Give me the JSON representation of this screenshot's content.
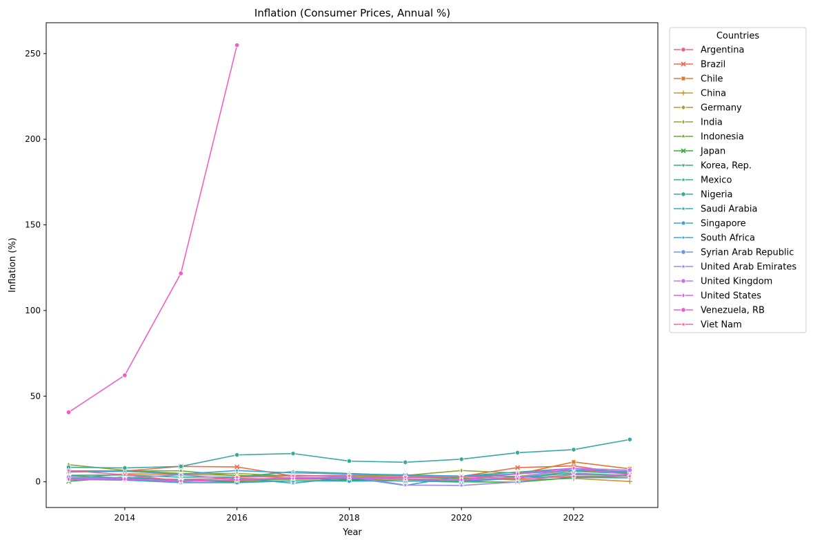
{
  "chart_data": {
    "type": "line",
    "title": "Inflation (Consumer Prices, Annual %)",
    "xlabel": "Year",
    "ylabel": "Inflation (%)",
    "xlim": [
      2012.6,
      2023.5
    ],
    "ylim": [
      -15,
      268
    ],
    "x_ticks": [
      2014,
      2016,
      2018,
      2020,
      2022
    ],
    "y_ticks": [
      0,
      50,
      100,
      150,
      200,
      250
    ],
    "grid": false,
    "legend": {
      "title": "Countries",
      "placement": "outside-right"
    },
    "x": [
      2013,
      2014,
      2015,
      2016,
      2017,
      2018,
      2019,
      2020,
      2021,
      2022,
      2023
    ],
    "series": [
      {
        "name": "Argentina",
        "color": "#f0637c",
        "marker": "circle",
        "values": [
          null,
          null,
          null,
          null,
          null,
          null,
          null,
          null,
          null,
          null,
          null
        ]
      },
      {
        "name": "Brazil",
        "color": "#ee6a49",
        "marker": "x",
        "values": [
          6.2,
          6.3,
          9.0,
          8.7,
          3.4,
          3.7,
          3.7,
          3.2,
          8.3,
          9.3,
          4.6
        ]
      },
      {
        "name": "Chile",
        "color": "#db7a2a",
        "marker": "square",
        "values": [
          1.8,
          4.7,
          4.3,
          3.8,
          2.2,
          2.4,
          2.6,
          3.0,
          4.5,
          11.6,
          7.6
        ]
      },
      {
        "name": "China",
        "color": "#c89435",
        "marker": "plus",
        "values": [
          2.6,
          2.0,
          1.4,
          2.0,
          1.6,
          2.1,
          2.9,
          2.4,
          1.0,
          2.0,
          0.2
        ]
      },
      {
        "name": "Germany",
        "color": "#ae9d31",
        "marker": "diamond",
        "values": [
          1.5,
          0.9,
          0.5,
          0.5,
          1.5,
          1.7,
          1.4,
          0.1,
          3.1,
          6.9,
          5.9
        ]
      },
      {
        "name": "India",
        "color": "#8fa531",
        "marker": "thin_diamond",
        "values": [
          10.0,
          6.7,
          4.9,
          4.9,
          3.3,
          3.9,
          3.7,
          6.6,
          5.1,
          6.7,
          5.4
        ]
      },
      {
        "name": "Indonesia",
        "color": "#5dae31",
        "marker": "triangle",
        "values": [
          6.4,
          6.4,
          6.4,
          3.5,
          3.8,
          3.2,
          2.8,
          1.9,
          1.6,
          4.2,
          3.7
        ]
      },
      {
        "name": "Japan",
        "color": "#33b03b",
        "marker": "x",
        "values": [
          0.3,
          2.8,
          0.8,
          -0.1,
          0.5,
          1.0,
          0.5,
          0.0,
          -0.2,
          2.5,
          3.3
        ]
      },
      {
        "name": "Korea, Rep.",
        "color": "#36ad6b",
        "marker": "triangle_down",
        "values": [
          1.3,
          1.3,
          0.7,
          1.0,
          1.9,
          1.5,
          0.4,
          0.5,
          2.5,
          5.1,
          3.6
        ]
      },
      {
        "name": "Mexico",
        "color": "#37ab8a",
        "marker": "star",
        "values": [
          3.8,
          4.0,
          2.7,
          2.8,
          6.0,
          4.9,
          3.6,
          3.4,
          5.7,
          7.9,
          5.5
        ]
      },
      {
        "name": "Nigeria",
        "color": "#38a89e",
        "marker": "hexagon",
        "values": [
          8.5,
          8.1,
          9.0,
          15.7,
          16.5,
          12.1,
          11.4,
          13.2,
          17.0,
          18.8,
          24.7
        ]
      },
      {
        "name": "Saudi Arabia",
        "color": "#39a7b0",
        "marker": "star",
        "values": [
          3.5,
          2.2,
          1.2,
          2.1,
          -0.8,
          2.5,
          -2.1,
          3.4,
          3.1,
          2.5,
          2.3
        ]
      },
      {
        "name": "Singapore",
        "color": "#3aa6c3",
        "marker": "pentagon",
        "values": [
          2.4,
          1.0,
          -0.5,
          -0.5,
          0.6,
          0.4,
          0.6,
          -0.2,
          2.3,
          6.1,
          4.8
        ]
      },
      {
        "name": "South Africa",
        "color": "#3ba3dc",
        "marker": "point",
        "values": [
          5.7,
          6.1,
          4.5,
          6.6,
          5.2,
          4.6,
          4.1,
          3.3,
          4.6,
          6.9,
          6.1
        ]
      },
      {
        "name": "Syrian Arab Republic",
        "color": "#6e93ec",
        "marker": "circle",
        "values": [
          null,
          null,
          null,
          null,
          null,
          null,
          null,
          null,
          null,
          null,
          null
        ]
      },
      {
        "name": "United Arab Emirates",
        "color": "#9f86e7",
        "marker": "star",
        "values": [
          1.1,
          2.3,
          4.1,
          1.6,
          2.0,
          3.1,
          -1.9,
          -2.1,
          -0.1,
          4.8,
          3.1
        ]
      },
      {
        "name": "United Kingdom",
        "color": "#c774ef",
        "marker": "circle",
        "values": [
          2.6,
          1.5,
          0.4,
          1.0,
          2.6,
          2.3,
          1.7,
          1.0,
          2.5,
          7.9,
          6.8
        ]
      },
      {
        "name": "United States",
        "color": "#e05de6",
        "marker": "thin_diamond",
        "values": [
          1.5,
          1.6,
          0.1,
          1.3,
          2.1,
          2.4,
          1.8,
          1.2,
          4.7,
          8.0,
          4.1
        ]
      },
      {
        "name": "Venezuela, RB",
        "color": "#f05fc4",
        "marker": "circle",
        "values": [
          40.6,
          62.2,
          121.7,
          254.9,
          null,
          null,
          null,
          null,
          null,
          null,
          null
        ]
      },
      {
        "name": "Viet Nam",
        "color": "#f463a0",
        "marker": "star",
        "values": [
          6.6,
          4.1,
          0.6,
          2.7,
          3.5,
          3.5,
          2.8,
          3.2,
          1.8,
          3.2,
          3.3
        ]
      }
    ]
  }
}
